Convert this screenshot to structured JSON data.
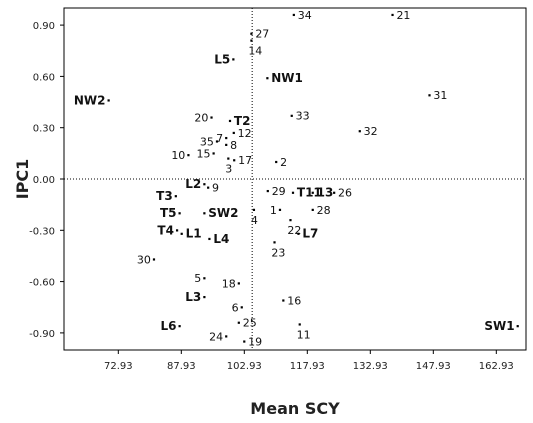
{
  "chart_data": {
    "type": "scatter",
    "xlabel": "Mean SCY",
    "ylabel": "IPC1",
    "xlim": [
      60.0,
      170.0
    ],
    "ylim": [
      -1.0,
      1.0
    ],
    "x_ticks": [
      {
        "value": 72.93,
        "label": "72.93"
      },
      {
        "value": 87.93,
        "label": "87.93"
      },
      {
        "value": 102.93,
        "label": "102.93"
      },
      {
        "value": 117.93,
        "label": "117.93"
      },
      {
        "value": 132.93,
        "label": "132.93"
      },
      {
        "value": 147.93,
        "label": "147.93"
      },
      {
        "value": 162.93,
        "label": "162.93"
      }
    ],
    "y_ticks": [
      {
        "value": 0.9,
        "label": "0.90"
      },
      {
        "value": 0.6,
        "label": "0.60"
      },
      {
        "value": 0.3,
        "label": "0.30"
      },
      {
        "value": 0.0,
        "label": "0.00"
      },
      {
        "value": -0.3,
        "label": "-0.30"
      },
      {
        "value": -0.6,
        "label": "-0.60"
      },
      {
        "value": -0.9,
        "label": "-0.90"
      }
    ],
    "reference_lines": {
      "x": 104.8,
      "y": 0.0
    },
    "grid": false,
    "points": [
      {
        "label": "27",
        "x": 104.6,
        "y": 0.85,
        "bold": false,
        "side": "right"
      },
      {
        "label": "34",
        "x": 114.7,
        "y": 0.96,
        "bold": false,
        "side": "right"
      },
      {
        "label": "21",
        "x": 138.2,
        "y": 0.96,
        "bold": false,
        "side": "right"
      },
      {
        "label": "14",
        "x": 104.6,
        "y": 0.81,
        "bold": false,
        "side": "below"
      },
      {
        "label": "L5",
        "x": 100.3,
        "y": 0.7,
        "bold": true,
        "side": "left"
      },
      {
        "label": "NW1",
        "x": 108.4,
        "y": 0.59,
        "bold": true,
        "side": "right"
      },
      {
        "label": "NW2",
        "x": 70.6,
        "y": 0.46,
        "bold": true,
        "side": "left"
      },
      {
        "label": "31",
        "x": 147.0,
        "y": 0.49,
        "bold": false,
        "side": "right"
      },
      {
        "label": "20",
        "x": 95.1,
        "y": 0.36,
        "bold": false,
        "side": "left"
      },
      {
        "label": "T2",
        "x": 99.5,
        "y": 0.34,
        "bold": true,
        "side": "right"
      },
      {
        "label": "33",
        "x": 114.2,
        "y": 0.37,
        "bold": false,
        "side": "right"
      },
      {
        "label": "7",
        "x": 98.6,
        "y": 0.24,
        "bold": false,
        "side": "left"
      },
      {
        "label": "12",
        "x": 100.4,
        "y": 0.27,
        "bold": false,
        "side": "right"
      },
      {
        "label": "32",
        "x": 130.4,
        "y": 0.28,
        "bold": false,
        "side": "right"
      },
      {
        "label": "35",
        "x": 96.4,
        "y": 0.22,
        "bold": false,
        "side": "left"
      },
      {
        "label": "8",
        "x": 98.6,
        "y": 0.2,
        "bold": false,
        "side": "right"
      },
      {
        "label": "10",
        "x": 89.6,
        "y": 0.14,
        "bold": false,
        "side": "left"
      },
      {
        "label": "15",
        "x": 95.6,
        "y": 0.15,
        "bold": false,
        "side": "left"
      },
      {
        "label": "3",
        "x": 99.1,
        "y": 0.12,
        "bold": false,
        "side": "below"
      },
      {
        "label": "17",
        "x": 100.5,
        "y": 0.11,
        "bold": false,
        "side": "right"
      },
      {
        "label": "2",
        "x": 110.5,
        "y": 0.1,
        "bold": false,
        "side": "right"
      },
      {
        "label": "L2",
        "x": 93.4,
        "y": -0.03,
        "bold": true,
        "side": "left"
      },
      {
        "label": "9",
        "x": 94.3,
        "y": -0.05,
        "bold": false,
        "side": "right"
      },
      {
        "label": "T3",
        "x": 86.6,
        "y": -0.1,
        "bold": true,
        "side": "left"
      },
      {
        "label": "29",
        "x": 108.5,
        "y": -0.07,
        "bold": false,
        "side": "right"
      },
      {
        "label": "T11",
        "x": 114.5,
        "y": -0.08,
        "bold": true,
        "side": "right"
      },
      {
        "label": "13",
        "x": 119.2,
        "y": -0.08,
        "bold": true,
        "side": "right"
      },
      {
        "label": "26",
        "x": 124.3,
        "y": -0.08,
        "bold": false,
        "side": "right"
      },
      {
        "label": "T5",
        "x": 87.5,
        "y": -0.2,
        "bold": true,
        "side": "left"
      },
      {
        "label": "SW2",
        "x": 93.4,
        "y": -0.2,
        "bold": true,
        "side": "right"
      },
      {
        "label": "1",
        "x": 111.4,
        "y": -0.18,
        "bold": false,
        "side": "left"
      },
      {
        "label": "28",
        "x": 119.2,
        "y": -0.18,
        "bold": false,
        "side": "right"
      },
      {
        "label": "4",
        "x": 105.2,
        "y": -0.18,
        "bold": false,
        "side": "below"
      },
      {
        "label": "22",
        "x": 113.9,
        "y": -0.24,
        "bold": false,
        "side": "below"
      },
      {
        "label": "T4",
        "x": 86.9,
        "y": -0.3,
        "bold": true,
        "side": "left"
      },
      {
        "label": "L1",
        "x": 88.0,
        "y": -0.32,
        "bold": true,
        "side": "right"
      },
      {
        "label": "L4",
        "x": 94.6,
        "y": -0.35,
        "bold": true,
        "side": "right"
      },
      {
        "label": "L7",
        "x": 115.8,
        "y": -0.32,
        "bold": true,
        "side": "right"
      },
      {
        "label": "23",
        "x": 110.1,
        "y": -0.37,
        "bold": false,
        "side": "below"
      },
      {
        "label": "30",
        "x": 81.4,
        "y": -0.47,
        "bold": false,
        "side": "left"
      },
      {
        "label": "5",
        "x": 93.4,
        "y": -0.58,
        "bold": false,
        "side": "left"
      },
      {
        "label": "18",
        "x": 101.6,
        "y": -0.61,
        "bold": false,
        "side": "left"
      },
      {
        "label": "L3",
        "x": 93.4,
        "y": -0.69,
        "bold": true,
        "side": "left"
      },
      {
        "label": "16",
        "x": 112.2,
        "y": -0.71,
        "bold": false,
        "side": "right"
      },
      {
        "label": "6",
        "x": 102.3,
        "y": -0.75,
        "bold": false,
        "side": "left"
      },
      {
        "label": "L6",
        "x": 87.5,
        "y": -0.86,
        "bold": true,
        "side": "left"
      },
      {
        "label": "25",
        "x": 101.6,
        "y": -0.84,
        "bold": false,
        "side": "right"
      },
      {
        "label": "SW1",
        "x": 168.0,
        "y": -0.86,
        "bold": true,
        "side": "left"
      },
      {
        "label": "24",
        "x": 98.6,
        "y": -0.92,
        "bold": false,
        "side": "left"
      },
      {
        "label": "19",
        "x": 102.9,
        "y": -0.95,
        "bold": false,
        "side": "right"
      },
      {
        "label": "11",
        "x": 116.1,
        "y": -0.85,
        "bold": false,
        "side": "below"
      }
    ]
  }
}
